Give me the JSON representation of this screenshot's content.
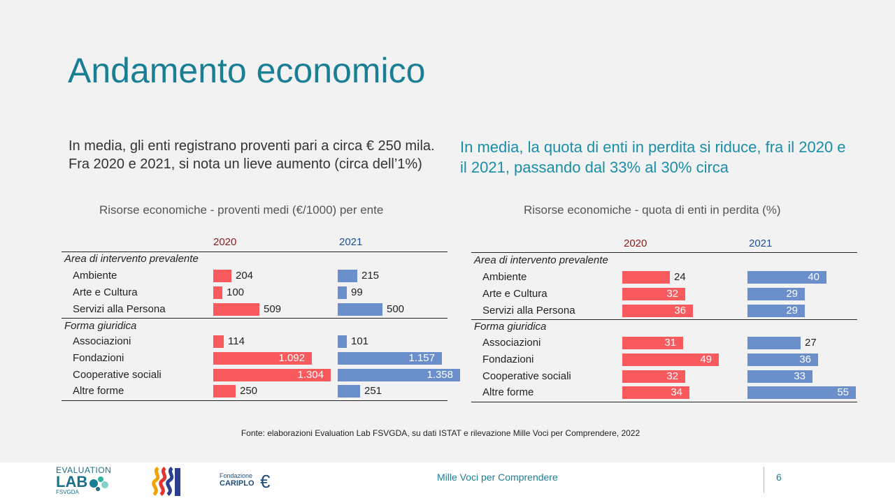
{
  "title": "Andamento economico",
  "lead_left": "In media, gli enti registrano proventi pari a circa € 250 mila. Fra 2020 e 2021, si nota un lieve aumento (circa dell’1%)",
  "lead_right": "In media, la quota di enti in perdita si riduce, fra il 2020 e il 2021, passando dal 33% al 30% circa",
  "source": "Fonte: elaborazioni Evaluation Lab FSVGDA, su dati ISTAT e rilevazione Mille Voci per Comprendere, 2022",
  "footer": {
    "project": "Mille Voci per Comprendere",
    "page": "6",
    "logo1_line1": "EVALUATION",
    "logo1_line2": "LAB",
    "logo1_line3": "FSVGDA",
    "logo3_line1": "Fondazione",
    "logo3_line2": "CARIPLO"
  },
  "colors": {
    "series_2020": "#f85a5e",
    "series_2021": "#6a8fcb",
    "title": "#1a7f94"
  },
  "chart_data": [
    {
      "type": "bar",
      "title": "Risorse economiche - proventi medi (€/1000) per ente",
      "series_names": [
        "2020",
        "2021"
      ],
      "groups": [
        {
          "label": "Area di intervento prevalente",
          "rows": [
            {
              "label": "Ambiente",
              "v2020": 204,
              "v2021": 215,
              "t2020": "204",
              "t2021": "215"
            },
            {
              "label": "Arte e Cultura",
              "v2020": 100,
              "v2021": 99,
              "t2020": "100",
              "t2021": "99"
            },
            {
              "label": "Servizi alla Persona",
              "v2020": 509,
              "v2021": 500,
              "t2020": "509",
              "t2021": "500"
            }
          ]
        },
        {
          "label": "Forma giuridica",
          "rows": [
            {
              "label": "Associazioni",
              "v2020": 114,
              "v2021": 101,
              "t2020": "114",
              "t2021": "101"
            },
            {
              "label": "Fondazioni",
              "v2020": 1092,
              "v2021": 1157,
              "t2020": "1.092",
              "t2021": "1.157"
            },
            {
              "label": "Cooperative sociali",
              "v2020": 1304,
              "v2021": 1358,
              "t2020": "1.304",
              "t2021": "1.358"
            },
            {
              "label": "Altre forme",
              "v2020": 250,
              "v2021": 251,
              "t2020": "250",
              "t2021": "251"
            }
          ]
        }
      ],
      "max": 1358
    },
    {
      "type": "bar",
      "title": "Risorse economiche - quota di enti in perdita (%)",
      "series_names": [
        "2020",
        "2021"
      ],
      "groups": [
        {
          "label": "Area di intervento prevalente",
          "rows": [
            {
              "label": "Ambiente",
              "v2020": 24,
              "v2021": 40,
              "t2020": "24",
              "t2021": "40"
            },
            {
              "label": "Arte e Cultura",
              "v2020": 32,
              "v2021": 29,
              "t2020": "32",
              "t2021": "29"
            },
            {
              "label": "Servizi alla Persona",
              "v2020": 36,
              "v2021": 29,
              "t2020": "36",
              "t2021": "29"
            }
          ]
        },
        {
          "label": "Forma giuridica",
          "rows": [
            {
              "label": "Associazioni",
              "v2020": 31,
              "v2021": 27,
              "t2020": "31",
              "t2021": "27"
            },
            {
              "label": "Fondazioni",
              "v2020": 49,
              "v2021": 36,
              "t2020": "49",
              "t2021": "36"
            },
            {
              "label": "Cooperative sociali",
              "v2020": 32,
              "v2021": 33,
              "t2020": "32",
              "t2021": "33"
            },
            {
              "label": "Altre forme",
              "v2020": 34,
              "v2021": 55,
              "t2020": "34",
              "t2021": "55"
            }
          ]
        }
      ],
      "max": 55
    }
  ]
}
